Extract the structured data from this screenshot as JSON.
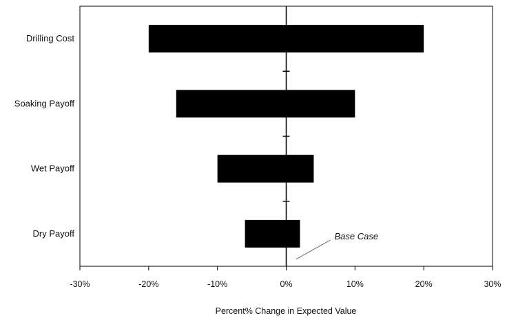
{
  "chart_data": {
    "type": "bar",
    "orientation": "horizontal",
    "variant": "tornado",
    "categories": [
      "Drilling Cost",
      "Soaking Payoff",
      "Wet Payoff",
      "Dry Payoff"
    ],
    "series": [
      {
        "low": [
          -20,
          -16,
          -10,
          -6
        ],
        "high": [
          20,
          10,
          4,
          2
        ]
      }
    ],
    "xlabel": "Percent% Change in Expected Value",
    "ylabel": "",
    "title": "",
    "xlim": [
      -30,
      30
    ],
    "xticks": [
      -30,
      -20,
      -10,
      0,
      10,
      20,
      30
    ],
    "xtick_labels": [
      "-30%",
      "-20%",
      "-10%",
      "0%",
      "10%",
      "20%",
      "30%"
    ],
    "base_value": 0,
    "grid": false,
    "legend": "none",
    "annotations": [
      {
        "text": "Base Case",
        "x": 0,
        "y": 0
      }
    ],
    "colors": {
      "bar": "#000000",
      "axis": "#000000",
      "background": "#ffffff"
    }
  }
}
